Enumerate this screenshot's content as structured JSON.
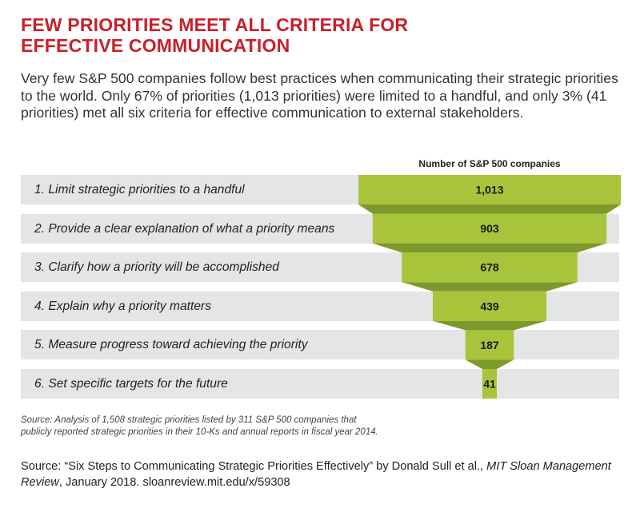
{
  "header": {
    "title_line1": "FEW PRIORITIES MEET ALL CRITERIA FOR",
    "title_line2": "EFFECTIVE COMMUNICATION",
    "intro": "Very few S&P 500 companies follow best practices when communicating their strategic priorities to the world. Only 67% of priorities (1,013 priorities) were limited to a handful, and only 3% (41 priorities) met all six criteria for effective communication to external stakeholders."
  },
  "chart_data": {
    "type": "bar",
    "title": "",
    "column_header": "Number of S&P 500 companies",
    "categories": [
      "1. Limit strategic priorities to a handful",
      "2. Provide a clear explanation of what a priority means",
      "3. Clarify how a priority will be accomplished",
      "4. Explain why a priority matters",
      "5. Measure progress toward achieving the priority",
      "6. Set specific targets for the future"
    ],
    "values": [
      1013,
      903,
      678,
      439,
      187,
      41
    ],
    "value_labels": [
      "1,013",
      "903",
      "678",
      "439",
      "187",
      "41"
    ],
    "xlim": [
      0,
      1013
    ],
    "grid": false,
    "legend": "none",
    "colors": {
      "bar": "#a8c43a",
      "connector": "#7c9a2b",
      "row_background": "#e4e5e6",
      "title": "#c8202b"
    }
  },
  "footnote": {
    "line1": "Source: Analysis of 1,508 strategic priorities listed by 311 S&P 500 companies that",
    "line2": "publicly reported strategic priorities in their 10-Ks and annual reports in fiscal year 2014."
  },
  "source": {
    "prefix": "Source: “Six Steps to Communicating Strategic Priorities Effectively” by Donald Sull et al., ",
    "journal": "MIT Sloan Management Review",
    "suffix": ", January 2018. sloanreview.mit.edu/x/59308"
  }
}
